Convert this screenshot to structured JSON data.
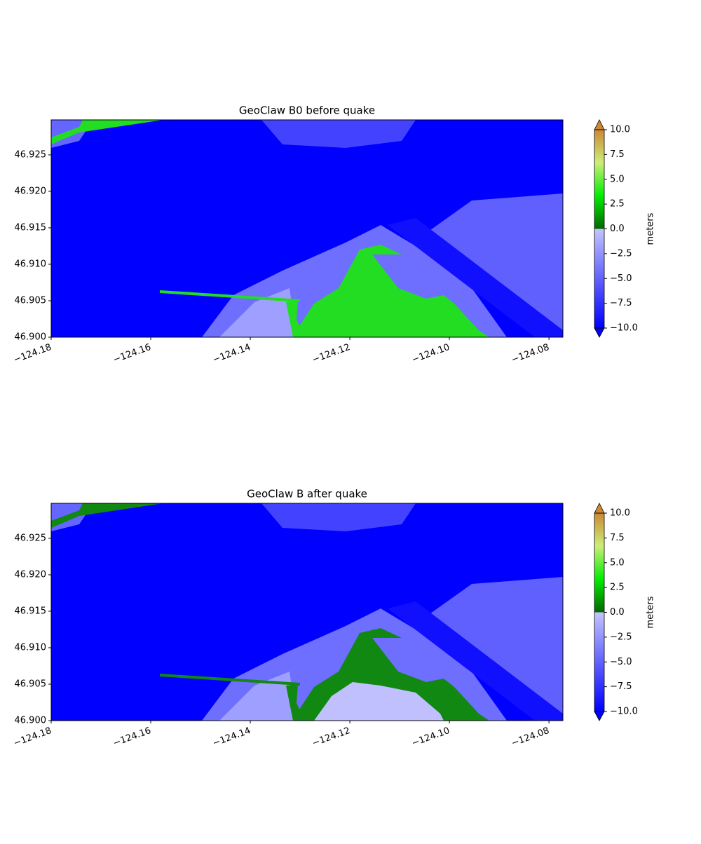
{
  "chart_data": [
    {
      "type": "heatmap",
      "title": "GeoClaw B0 before quake",
      "xlim": [
        -124.18,
        -124.0772
      ],
      "ylim": [
        46.9,
        46.9298
      ],
      "xticks": [
        {
          "value": -124.18,
          "label": "−124.18"
        },
        {
          "value": -124.16,
          "label": "−124.16"
        },
        {
          "value": -124.14,
          "label": "−124.14"
        },
        {
          "value": -124.12,
          "label": "−124.12"
        },
        {
          "value": -124.1,
          "label": "−124.10"
        },
        {
          "value": -124.08,
          "label": "−124.08"
        }
      ],
      "yticks": [
        {
          "value": 46.9,
          "label": "46.900"
        },
        {
          "value": 46.905,
          "label": "46.905"
        },
        {
          "value": 46.91,
          "label": "46.910"
        },
        {
          "value": 46.915,
          "label": "46.915"
        },
        {
          "value": 46.92,
          "label": "46.920"
        },
        {
          "value": 46.925,
          "label": "46.925"
        }
      ],
      "colorbar": {
        "label": "meters",
        "lim": [
          -10,
          10
        ],
        "ticks": [
          {
            "value": 10,
            "label": "10.0"
          },
          {
            "value": 7.5,
            "label": "7.5"
          },
          {
            "value": 5,
            "label": "5.0"
          },
          {
            "value": 2.5,
            "label": "2.5"
          },
          {
            "value": 0,
            "label": "0.0"
          },
          {
            "value": -2.5,
            "label": "−2.5"
          },
          {
            "value": -5,
            "label": "−5.0"
          },
          {
            "value": -7.5,
            "label": "−7.5"
          },
          {
            "value": -10,
            "label": "−10.0"
          }
        ],
        "water_colors": [
          "#0000ff",
          "#c4c4ff"
        ],
        "land_colors": [
          "#006600",
          "#00ee00",
          "#ccee77",
          "#cc8833"
        ]
      }
    },
    {
      "type": "heatmap",
      "title": "GeoClaw B after quake",
      "xlim": [
        -124.18,
        -124.0772
      ],
      "ylim": [
        46.9,
        46.9298
      ],
      "xticks": [
        {
          "value": -124.18,
          "label": "−124.18"
        },
        {
          "value": -124.16,
          "label": "−124.16"
        },
        {
          "value": -124.14,
          "label": "−124.14"
        },
        {
          "value": -124.12,
          "label": "−124.12"
        },
        {
          "value": -124.1,
          "label": "−124.10"
        },
        {
          "value": -124.08,
          "label": "−124.08"
        }
      ],
      "yticks": [
        {
          "value": 46.9,
          "label": "46.900"
        },
        {
          "value": 46.905,
          "label": "46.905"
        },
        {
          "value": 46.91,
          "label": "46.910"
        },
        {
          "value": 46.915,
          "label": "46.915"
        },
        {
          "value": 46.92,
          "label": "46.920"
        },
        {
          "value": 46.925,
          "label": "46.925"
        }
      ],
      "colorbar": {
        "label": "meters",
        "lim": [
          -10,
          10
        ],
        "ticks": [
          {
            "value": 10,
            "label": "10.0"
          },
          {
            "value": 7.5,
            "label": "7.5"
          },
          {
            "value": 5,
            "label": "5.0"
          },
          {
            "value": 2.5,
            "label": "2.5"
          },
          {
            "value": 0,
            "label": "0.0"
          },
          {
            "value": -2.5,
            "label": "−2.5"
          },
          {
            "value": -5,
            "label": "−5.0"
          },
          {
            "value": -7.5,
            "label": "−7.5"
          },
          {
            "value": -10,
            "label": "−10.0"
          }
        ],
        "water_colors": [
          "#0000ff",
          "#c4c4ff"
        ],
        "land_colors": [
          "#006600",
          "#00ee00",
          "#ccee77",
          "#cc8833"
        ]
      }
    }
  ]
}
